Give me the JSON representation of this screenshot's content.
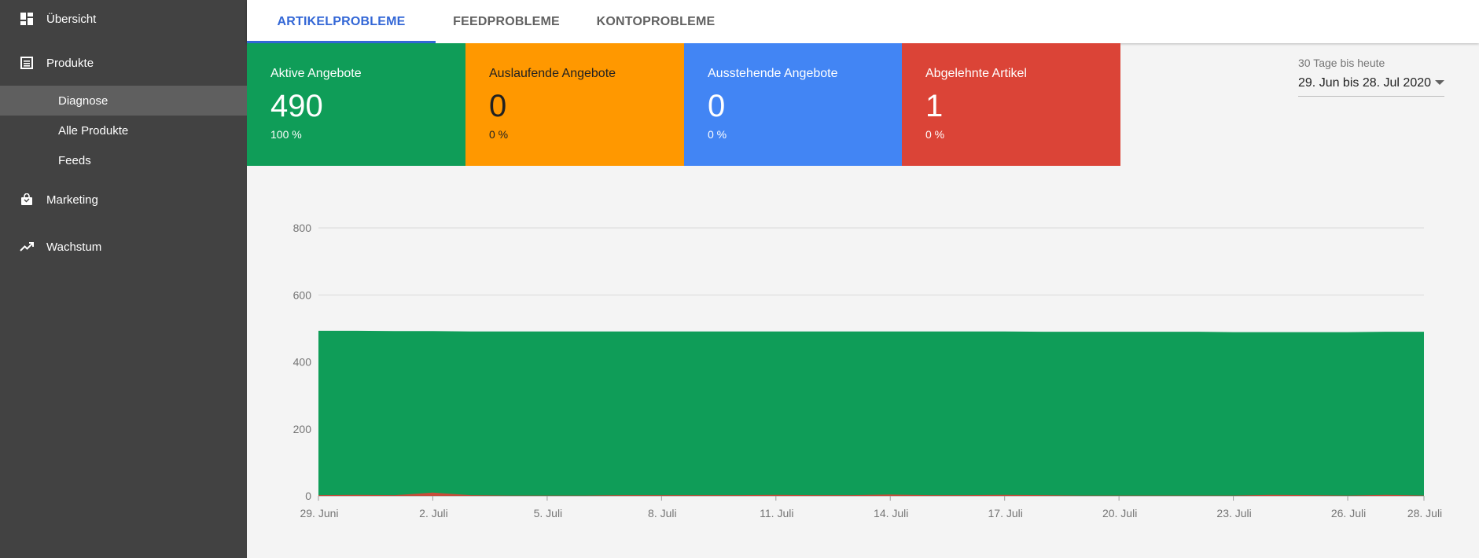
{
  "sidebar": {
    "items": [
      {
        "label": "Übersicht",
        "icon": "dashboard-icon"
      },
      {
        "label": "Produkte",
        "icon": "list-icon"
      },
      {
        "label": "Marketing",
        "icon": "shopping-bag-icon"
      },
      {
        "label": "Wachstum",
        "icon": "trending-up-icon"
      }
    ],
    "subitems": [
      {
        "label": "Diagnose",
        "active": true
      },
      {
        "label": "Alle Produkte",
        "active": false
      },
      {
        "label": "Feeds",
        "active": false
      }
    ]
  },
  "tabs": [
    {
      "label": "ARTIKELPROBLEME",
      "active": true
    },
    {
      "label": "FEEDPROBLEME",
      "active": false
    },
    {
      "label": "KONTOPROBLEME",
      "active": false
    }
  ],
  "cards": [
    {
      "title": "Aktive Angebote",
      "value": "490",
      "percent": "100 %",
      "color": "#0f9d58"
    },
    {
      "title": "Auslaufende Angebote",
      "value": "0",
      "percent": "0 %",
      "color": "#ff9800"
    },
    {
      "title": "Ausstehende Angebote",
      "value": "0",
      "percent": "0 %",
      "color": "#4285f4"
    },
    {
      "title": "Abgelehnte Artikel",
      "value": "1",
      "percent": "0 %",
      "color": "#db4437"
    }
  ],
  "date_range": {
    "caption": "30 Tage bis heute",
    "value": "29. Jun bis 28. Jul 2020"
  },
  "chart_data": {
    "type": "area",
    "x": [
      "29. Juni",
      "30. Juni",
      "1. Juli",
      "2. Juli",
      "3. Juli",
      "4. Juli",
      "5. Juli",
      "6. Juli",
      "7. Juli",
      "8. Juli",
      "9. Juli",
      "10. Juli",
      "11. Juli",
      "12. Juli",
      "13. Juli",
      "14. Juli",
      "15. Juli",
      "16. Juli",
      "17. Juli",
      "18. Juli",
      "19. Juli",
      "20. Juli",
      "21. Juli",
      "22. Juli",
      "23. Juli",
      "24. Juli",
      "25. Juli",
      "26. Juli",
      "27. Juli",
      "28. Juli"
    ],
    "x_tick_labels": [
      "29. Juni",
      "2. Juli",
      "5. Juli",
      "8. Juli",
      "11. Juli",
      "14. Juli",
      "17. Juli",
      "20. Juli",
      "23. Juli",
      "26. Juli",
      "28. Juli"
    ],
    "series": [
      {
        "color": "#0f9d58",
        "values": [
          493,
          493,
          492,
          492,
          491,
          491,
          491,
          491,
          491,
          491,
          491,
          491,
          491,
          491,
          491,
          491,
          491,
          491,
          491,
          490,
          490,
          490,
          490,
          490,
          489,
          489,
          489,
          489,
          490,
          490
        ]
      },
      {
        "color": "#db4437",
        "values": [
          2,
          3,
          2,
          10,
          2,
          1,
          1,
          1,
          2,
          2,
          2,
          2,
          3,
          2,
          2,
          4,
          2,
          2,
          3,
          2,
          1,
          1,
          1,
          1,
          1,
          3,
          2,
          1,
          3,
          1
        ]
      },
      {
        "color": "#ff9800",
        "values": [
          0,
          0,
          0,
          0,
          0,
          0,
          0,
          0,
          0,
          0,
          0,
          0,
          0,
          0,
          0,
          0,
          0,
          0,
          0,
          0,
          0,
          0,
          0,
          0,
          0,
          0,
          0,
          0,
          0,
          0
        ]
      }
    ],
    "y_ticks": [
      0,
      200,
      400,
      600,
      800
    ],
    "ylim": [
      0,
      800
    ],
    "grid": true
  }
}
